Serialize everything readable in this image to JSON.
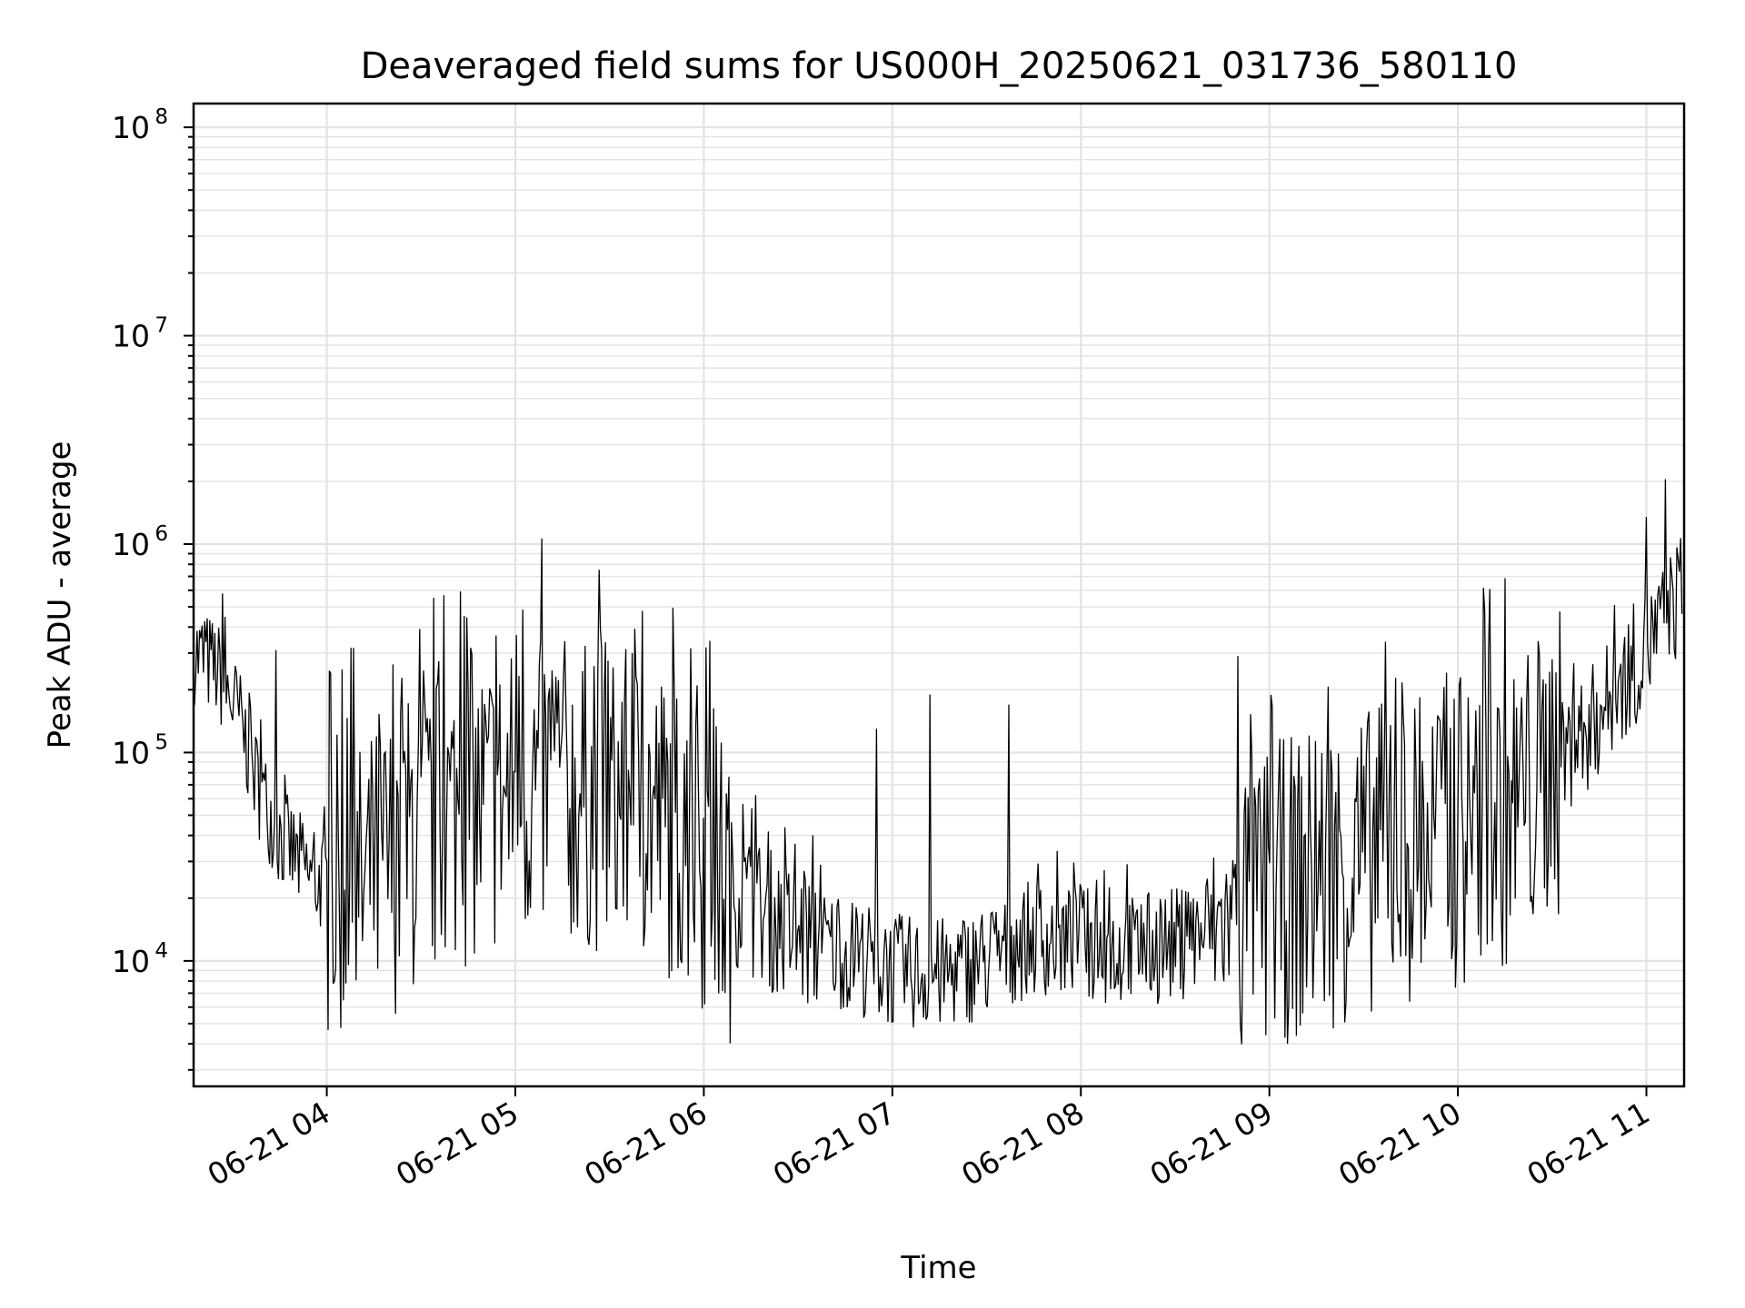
{
  "chart_data": {
    "type": "line",
    "title": "Deaveraged field sums for US000H_20250621_031736_580110",
    "xlabel": "Time",
    "ylabel": "Peak ADU - average",
    "yscale": "log",
    "ylim": [
      2500,
      130000000
    ],
    "xlim": [
      "2025-06-21T03:17:36",
      "2025-06-21T11:12:00"
    ],
    "x_ticks": [
      {
        "time": "2025-06-21T04:00:00",
        "label": "06-21 04"
      },
      {
        "time": "2025-06-21T05:00:00",
        "label": "06-21 05"
      },
      {
        "time": "2025-06-21T06:00:00",
        "label": "06-21 06"
      },
      {
        "time": "2025-06-21T07:00:00",
        "label": "06-21 07"
      },
      {
        "time": "2025-06-21T08:00:00",
        "label": "06-21 08"
      },
      {
        "time": "2025-06-21T09:00:00",
        "label": "06-21 09"
      },
      {
        "time": "2025-06-21T10:00:00",
        "label": "06-21 10"
      },
      {
        "time": "2025-06-21T11:00:00",
        "label": "06-21 11"
      }
    ],
    "y_ticks": [
      {
        "value": 10000,
        "base": "10",
        "exp": "4"
      },
      {
        "value": 100000,
        "base": "10",
        "exp": "5"
      },
      {
        "value": 1000000,
        "base": "10",
        "exp": "6"
      },
      {
        "value": 10000000,
        "base": "10",
        "exp": "7"
      },
      {
        "value": 100000000,
        "base": "10",
        "exp": "8"
      }
    ],
    "grid": true,
    "line_color": "#000000",
    "grid_color": "#e3e3e3",
    "series": [
      {
        "x": [
          "2025-06-21T03:18:00",
          "2025-06-21T03:25:00",
          "2025-06-21T03:32:00",
          "2025-06-21T03:38:00",
          "2025-06-21T03:45:00",
          "2025-06-21T03:55:00",
          "2025-06-21T04:10:00",
          "2025-06-21T04:25:00",
          "2025-06-21T04:40:00",
          "2025-06-21T04:55:00",
          "2025-06-21T05:10:00",
          "2025-06-21T05:25:00",
          "2025-06-21T05:40:00",
          "2025-06-21T05:55:00",
          "2025-06-21T06:05:00",
          "2025-06-21T06:15:00",
          "2025-06-21T06:30:00",
          "2025-06-21T06:45:00",
          "2025-06-21T07:00:00",
          "2025-06-21T07:15:00",
          "2025-06-21T07:30:00",
          "2025-06-21T07:45:00",
          "2025-06-21T08:00:00",
          "2025-06-21T08:15:00",
          "2025-06-21T08:30:00",
          "2025-06-21T08:45:00",
          "2025-06-21T09:00:00",
          "2025-06-21T09:15:00",
          "2025-06-21T09:30:00",
          "2025-06-21T09:45:00",
          "2025-06-21T10:00:00",
          "2025-06-21T10:15:00",
          "2025-06-21T10:30:00",
          "2025-06-21T10:45:00",
          "2025-06-21T10:55:00",
          "2025-06-21T11:05:00",
          "2025-06-21T11:11:00"
        ],
        "y": [
          300000,
          250000,
          150000,
          70000,
          40000,
          25000,
          20000,
          35000,
          50000,
          60000,
          70000,
          60000,
          55000,
          40000,
          25000,
          18000,
          13000,
          11000,
          9000,
          8500,
          10000,
          13000,
          12000,
          11000,
          12000,
          15000,
          20000,
          25000,
          30000,
          35000,
          40000,
          50000,
          80000,
          150000,
          250000,
          400000,
          600000
        ],
        "peaks": [
          {
            "time": "2025-06-21T03:27:00",
            "value": 580000
          },
          {
            "time": "2025-06-21T03:44:00",
            "value": 310000
          },
          {
            "time": "2025-06-21T04:05:00",
            "value": 250000
          },
          {
            "time": "2025-06-21T04:45:00",
            "value": 210000
          },
          {
            "time": "2025-06-21T05:25:00",
            "value": 260000
          },
          {
            "time": "2025-06-21T05:37:00",
            "value": 300000
          },
          {
            "time": "2025-06-21T05:58:00",
            "value": 210000
          },
          {
            "time": "2025-06-21T06:55:00",
            "value": 130000
          },
          {
            "time": "2025-06-21T07:12:00",
            "value": 190000
          },
          {
            "time": "2025-06-21T07:37:00",
            "value": 170000
          },
          {
            "time": "2025-06-21T08:50:00",
            "value": 290000
          },
          {
            "time": "2025-06-21T09:37:00",
            "value": 340000
          },
          {
            "time": "2025-06-21T10:30:00",
            "value": 280000
          },
          {
            "time": "2025-06-21T11:00:00",
            "value": 1350000
          },
          {
            "time": "2025-06-21T11:06:00",
            "value": 2050000
          }
        ]
      }
    ]
  }
}
